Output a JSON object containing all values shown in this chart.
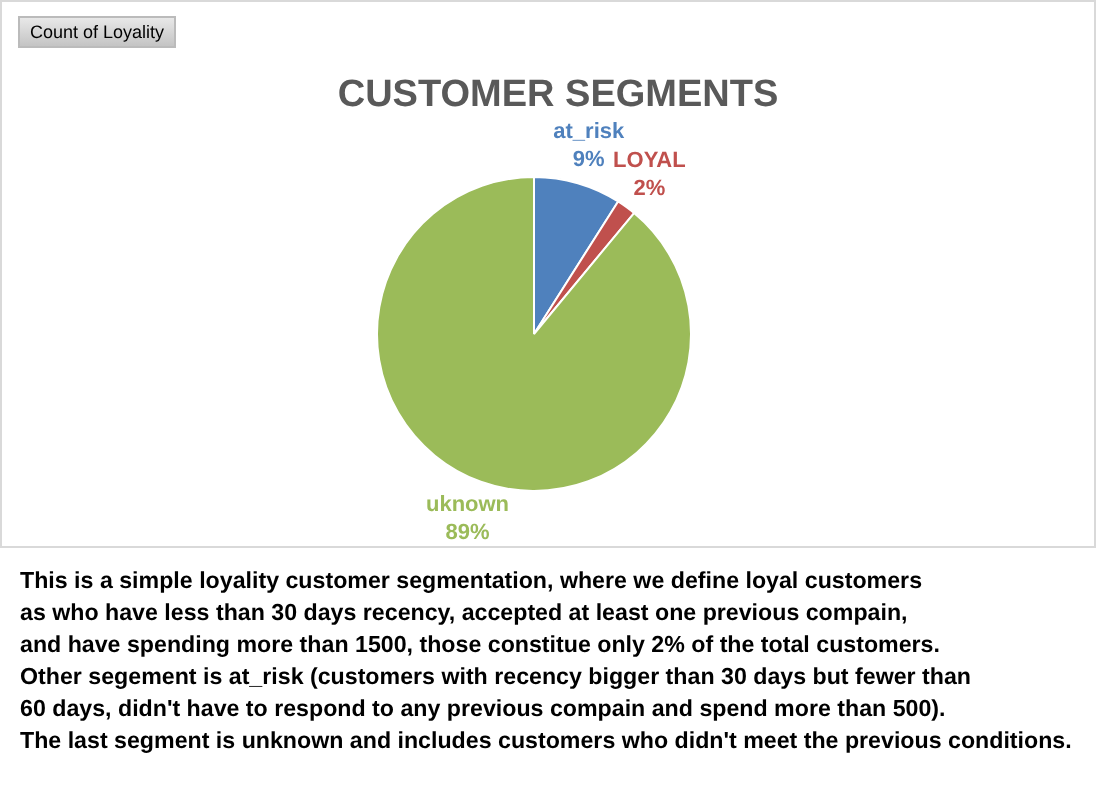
{
  "chart_data": {
    "type": "pie",
    "title": "CUSTOMER SEGMENTS",
    "categories": [
      "at_risk",
      "LOYAL",
      "uknown"
    ],
    "values": [
      9,
      2,
      89
    ],
    "colors": [
      "#4f81bd",
      "#c0504d",
      "#9bbb59"
    ],
    "value_labels": [
      "9%",
      "2%",
      "89%"
    ],
    "legend": false,
    "annotations": [
      "Count of Loyality",
      "This is a simple loyality customer segmentation, where we define loyal customers",
      "as who have less than 30 days recency, accepted at least one previous compain,",
      "and have spending more than 1500, those constitue only 2% of the total customers.",
      "Other segement is at_risk (customers with recency bigger than 30 days but fewer than",
      "60 days, didn't have to respond to any previous compain and spend more than 500).",
      "The last segment is unknown and includes customers who didn't meet the previous conditions."
    ]
  }
}
